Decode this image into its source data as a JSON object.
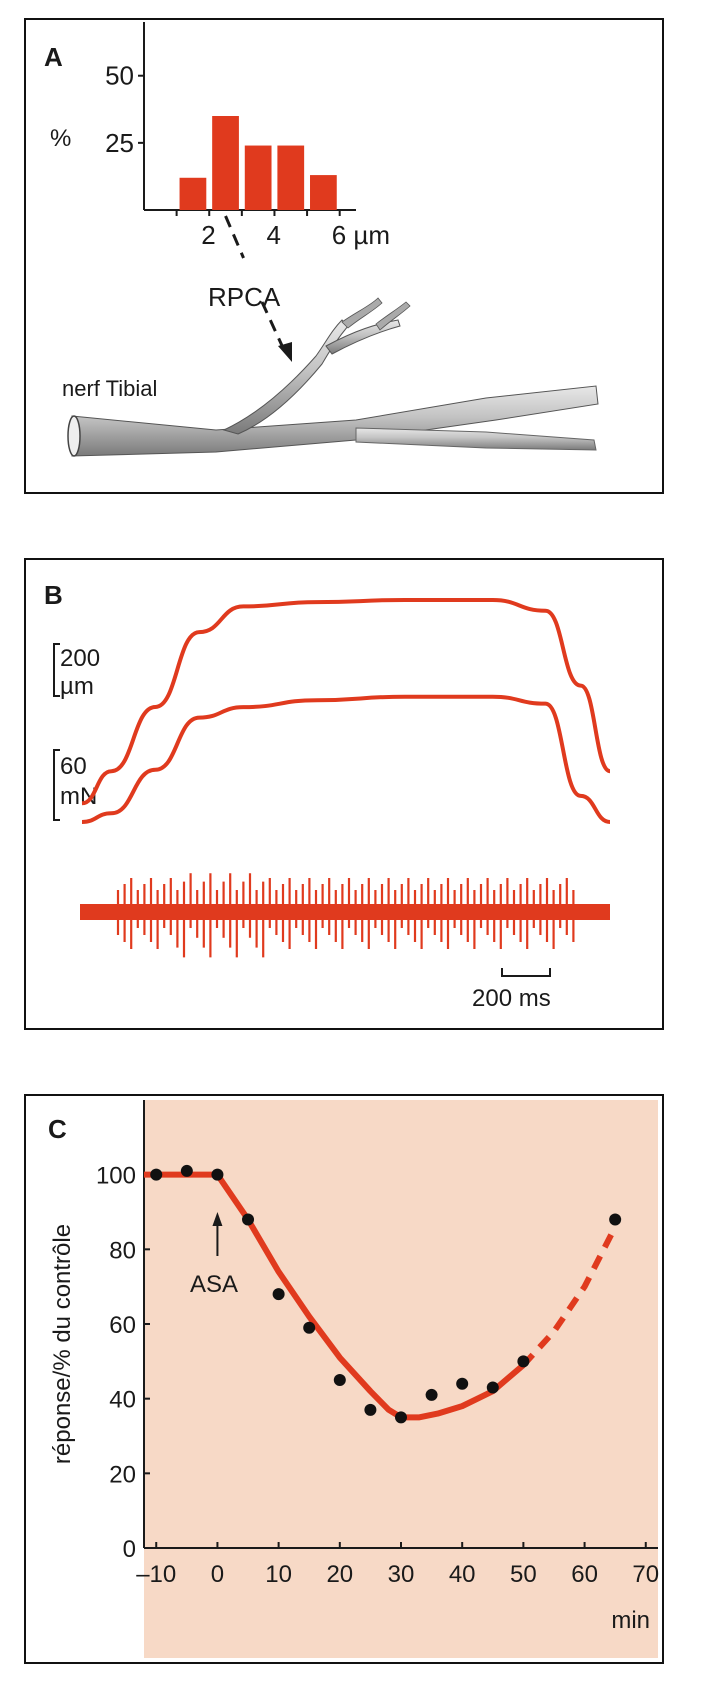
{
  "colors": {
    "accent": "#e03a1e",
    "panel_c_background": "#f7d9c6",
    "nerve": "#b8b8b8",
    "ink": "#1a1a1a"
  },
  "panels": {
    "a": {
      "letter": "A",
      "nerve_label": "nerf Tibial",
      "branch_label": "RPCA"
    },
    "b": {
      "letter": "B",
      "scale1_value": "200",
      "scale1_unit": "µm",
      "scale2_value": "60",
      "scale2_unit": "mN",
      "time_scale_label": "200 ms"
    },
    "c": {
      "letter": "C",
      "arrow_label": "ASA"
    }
  },
  "chart_data": [
    {
      "type": "bar",
      "panel": "A",
      "ylabel": "%",
      "xunit": "µm",
      "x": [
        1.5,
        2.5,
        3.5,
        4.5,
        5.5
      ],
      "values": [
        12,
        35,
        24,
        24,
        13
      ],
      "xlim": [
        0,
        6.5
      ],
      "ylim": [
        0,
        70
      ],
      "xticks": [
        2,
        4,
        6
      ],
      "xtick_labels": [
        "2",
        "4",
        "6 µm"
      ],
      "yticks": [
        25,
        50
      ],
      "ytick_labels": [
        "25",
        "50"
      ]
    },
    {
      "type": "line",
      "panel": "B",
      "series": [
        {
          "values": [
            0.05,
            0.2,
            0.5,
            0.85,
            0.97,
            0.99,
            1.0,
            1.0,
            0.95,
            0.6,
            0.2
          ]
        },
        {
          "values": [
            0.0,
            0.05,
            0.3,
            0.6,
            0.66,
            0.7,
            0.72,
            0.72,
            0.68,
            0.15,
            0.0
          ]
        }
      ],
      "x": [
        0,
        100,
        250,
        400,
        550,
        800,
        1100,
        1400,
        1580,
        1700,
        1800
      ],
      "time_unit": "ms",
      "time_scale_bar": 200
    },
    {
      "type": "scatter",
      "panel": "C",
      "xlabel": "min",
      "ylabel": "réponse/% du contrôle",
      "xlim": [
        -12,
        72
      ],
      "ylim": [
        0,
        120
      ],
      "xticks": [
        -10,
        0,
        10,
        20,
        30,
        40,
        50,
        60,
        70
      ],
      "xtick_labels": [
        "–10",
        "0",
        "10",
        "20",
        "30",
        "40",
        "50",
        "60",
        "70"
      ],
      "yticks": [
        0,
        20,
        40,
        60,
        80,
        100
      ],
      "ytick_labels": [
        "0",
        "20",
        "40",
        "60",
        "80",
        "100"
      ],
      "points": {
        "x": [
          -10,
          -5,
          0,
          5,
          10,
          15,
          20,
          25,
          30,
          35,
          40,
          45,
          50,
          65
        ],
        "y": [
          100,
          101,
          100,
          88,
          68,
          59,
          45,
          37,
          35,
          41,
          44,
          43,
          50,
          88
        ]
      },
      "fit": {
        "x": [
          -15,
          0,
          5,
          10,
          15,
          20,
          25,
          28,
          30,
          33,
          36,
          40,
          45,
          50,
          55,
          60,
          65
        ],
        "y": [
          100,
          100,
          88,
          74,
          62,
          51,
          42,
          37,
          35,
          35,
          36,
          38,
          42,
          49,
          58,
          70,
          86
        ],
        "dashed_from": 51
      },
      "annotation_x": 0
    }
  ]
}
